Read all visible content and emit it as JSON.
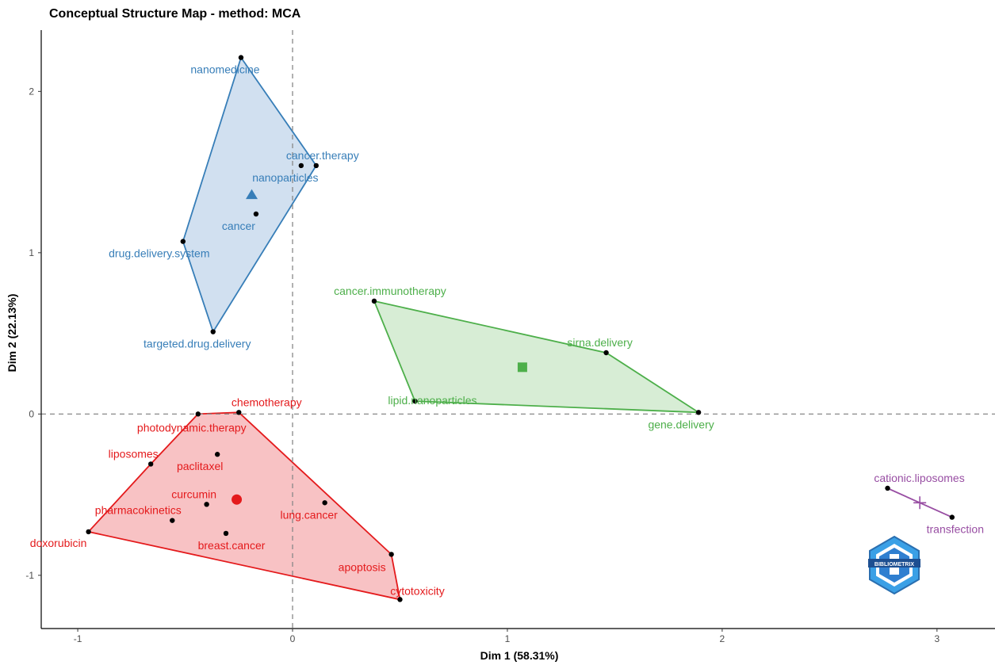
{
  "chart_data": {
    "type": "scatter",
    "title": "Conceptual Structure Map - method: MCA",
    "xlabel": "Dim 1 (58.31%)",
    "ylabel": "Dim 2 (22.13%)",
    "xlim": [
      -1.17,
      3.27
    ],
    "ylim": [
      -1.33,
      2.38
    ],
    "x_ticks": [
      -1,
      0,
      1,
      2,
      3
    ],
    "y_ticks": [
      -1,
      0,
      1,
      2
    ],
    "reference_lines": {
      "x": 0,
      "y": 0,
      "style": "dashed"
    },
    "grid": false,
    "logo_text": "BIBLIOMETRIX",
    "clusters": [
      {
        "id": 1,
        "color": "#377EB8",
        "centroid": {
          "x": -0.19,
          "y": 1.36,
          "marker": "triangle"
        },
        "hull": [
          "nanomedicine",
          "cancer.therapy",
          "targeted.drug.delivery",
          "drug.delivery.system"
        ],
        "points": [
          {
            "label": "nanomedicine",
            "x": -0.24,
            "y": 2.21
          },
          {
            "label": "cancer.therapy",
            "x": 0.11,
            "y": 1.54
          },
          {
            "label": "nanoparticles",
            "x": 0.04,
            "y": 1.54
          },
          {
            "label": "cancer",
            "x": -0.17,
            "y": 1.24
          },
          {
            "label": "drug.delivery.system",
            "x": -0.51,
            "y": 1.07
          },
          {
            "label": "targeted.drug.delivery",
            "x": -0.37,
            "y": 0.51
          }
        ]
      },
      {
        "id": 2,
        "color": "#4DAF4A",
        "centroid": {
          "x": 1.07,
          "y": 0.29,
          "marker": "square"
        },
        "hull": [
          "cancer.immunotherapy",
          "sirna.delivery",
          "gene.delivery",
          "lipid.nanoparticles"
        ],
        "points": [
          {
            "label": "cancer.immunotherapy",
            "x": 0.38,
            "y": 0.7
          },
          {
            "label": "sirna.delivery",
            "x": 1.46,
            "y": 0.38
          },
          {
            "label": "gene.delivery",
            "x": 1.89,
            "y": 0.01
          },
          {
            "label": "lipid.nanoparticles",
            "x": 0.57,
            "y": 0.08
          }
        ]
      },
      {
        "id": 3,
        "color": "#E41A1C",
        "centroid": {
          "x": -0.26,
          "y": -0.53,
          "marker": "circle"
        },
        "hull": [
          "photodynamic.therapy",
          "chemotherapy",
          "apoptosis",
          "cytotoxicity",
          "doxorubicin",
          "liposomes"
        ],
        "points": [
          {
            "label": "chemotherapy",
            "x": -0.25,
            "y": 0.01
          },
          {
            "label": "photodynamic.therapy",
            "x": -0.44,
            "y": 0.0
          },
          {
            "label": "liposomes",
            "x": -0.66,
            "y": -0.31
          },
          {
            "label": "paclitaxel",
            "x": -0.35,
            "y": -0.25
          },
          {
            "label": "curcumin",
            "x": -0.4,
            "y": -0.56
          },
          {
            "label": "pharmacokinetics",
            "x": -0.56,
            "y": -0.66
          },
          {
            "label": "lung.cancer",
            "x": 0.15,
            "y": -0.55
          },
          {
            "label": "breast.cancer",
            "x": -0.31,
            "y": -0.74
          },
          {
            "label": "doxorubicin",
            "x": -0.95,
            "y": -0.73
          },
          {
            "label": "apoptosis",
            "x": 0.46,
            "y": -0.87
          },
          {
            "label": "cytotoxicity",
            "x": 0.5,
            "y": -1.15
          }
        ]
      },
      {
        "id": 4,
        "color": "#984EA3",
        "centroid": {
          "x": 2.92,
          "y": -0.55,
          "marker": "cross"
        },
        "hull": [
          "cationic.liposomes",
          "transfection"
        ],
        "points": [
          {
            "label": "cationic.liposomes",
            "x": 2.77,
            "y": -0.46
          },
          {
            "label": "transfection",
            "x": 3.07,
            "y": -0.64
          }
        ]
      }
    ]
  }
}
